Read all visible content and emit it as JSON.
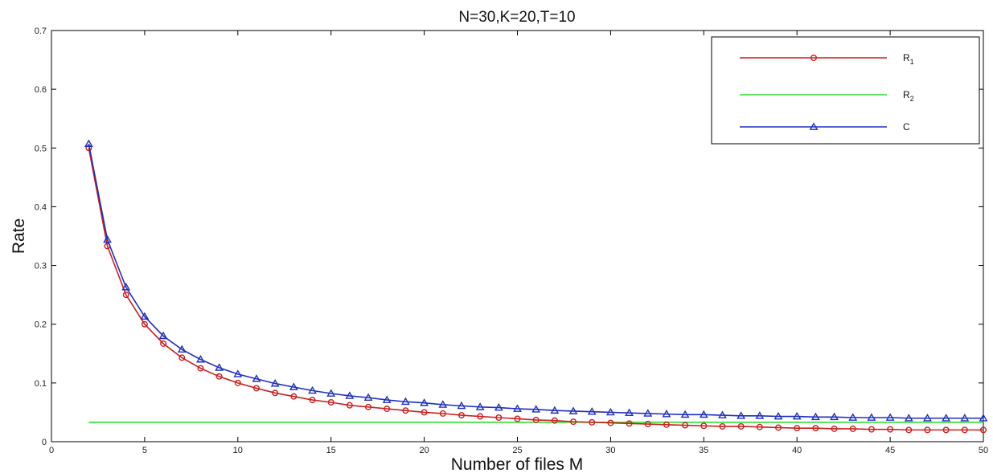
{
  "chart_data": {
    "type": "line",
    "title": "N=30,K=20,T=10",
    "xlabel": "Number of files M",
    "ylabel": "Rate",
    "xlim": [
      0,
      50
    ],
    "ylim": [
      0,
      0.7
    ],
    "xticks": [
      "0",
      "5",
      "10",
      "15",
      "20",
      "25",
      "30",
      "35",
      "40",
      "45",
      "50"
    ],
    "yticks": [
      "0",
      "0.1",
      "0.2",
      "0.3",
      "0.4",
      "0.5",
      "0.6",
      "0.7"
    ],
    "grid": false,
    "legend_position": "top-right",
    "x": [
      2,
      3,
      4,
      5,
      6,
      7,
      8,
      9,
      10,
      11,
      12,
      13,
      14,
      15,
      16,
      17,
      18,
      19,
      20,
      21,
      22,
      23,
      24,
      25,
      26,
      27,
      28,
      29,
      30,
      31,
      32,
      33,
      34,
      35,
      36,
      37,
      38,
      39,
      40,
      41,
      42,
      43,
      44,
      45,
      46,
      47,
      48,
      49,
      50
    ],
    "series": [
      {
        "name": "R_1",
        "legend_label": "R",
        "legend_sub": "1",
        "color": "#cc1f1f",
        "marker": "circle",
        "values": [
          0.5,
          0.333,
          0.25,
          0.2,
          0.167,
          0.143,
          0.125,
          0.111,
          0.1,
          0.091,
          0.083,
          0.077,
          0.071,
          0.067,
          0.062,
          0.059,
          0.056,
          0.053,
          0.05,
          0.048,
          0.045,
          0.043,
          0.041,
          0.039,
          0.037,
          0.036,
          0.034,
          0.033,
          0.032,
          0.031,
          0.03,
          0.029,
          0.028,
          0.027,
          0.026,
          0.026,
          0.025,
          0.024,
          0.023,
          0.023,
          0.022,
          0.022,
          0.021,
          0.021,
          0.02,
          0.02,
          0.02,
          0.02,
          0.02
        ]
      },
      {
        "name": "R_2",
        "legend_label": "R",
        "legend_sub": "2",
        "color": "#33dd33",
        "marker": "none",
        "values": [
          0.033,
          0.033,
          0.033,
          0.033,
          0.033,
          0.033,
          0.033,
          0.033,
          0.033,
          0.033,
          0.033,
          0.033,
          0.033,
          0.033,
          0.033,
          0.033,
          0.033,
          0.033,
          0.033,
          0.033,
          0.033,
          0.033,
          0.033,
          0.033,
          0.033,
          0.033,
          0.033,
          0.033,
          0.033,
          0.033,
          0.033,
          0.033,
          0.033,
          0.033,
          0.033,
          0.033,
          0.033,
          0.033,
          0.033,
          0.033,
          0.033,
          0.033,
          0.033,
          0.033,
          0.033,
          0.033,
          0.033,
          0.033,
          0.033
        ]
      },
      {
        "name": "C",
        "legend_label": "C",
        "legend_sub": "",
        "color": "#1f2fbf",
        "marker": "triangle",
        "values": [
          0.507,
          0.344,
          0.263,
          0.213,
          0.18,
          0.157,
          0.14,
          0.126,
          0.115,
          0.107,
          0.099,
          0.093,
          0.087,
          0.082,
          0.078,
          0.075,
          0.071,
          0.068,
          0.066,
          0.063,
          0.061,
          0.059,
          0.058,
          0.056,
          0.055,
          0.053,
          0.052,
          0.051,
          0.05,
          0.049,
          0.048,
          0.047,
          0.046,
          0.046,
          0.045,
          0.044,
          0.044,
          0.043,
          0.043,
          0.042,
          0.042,
          0.041,
          0.041,
          0.041,
          0.04,
          0.04,
          0.04,
          0.04,
          0.04
        ]
      }
    ]
  }
}
